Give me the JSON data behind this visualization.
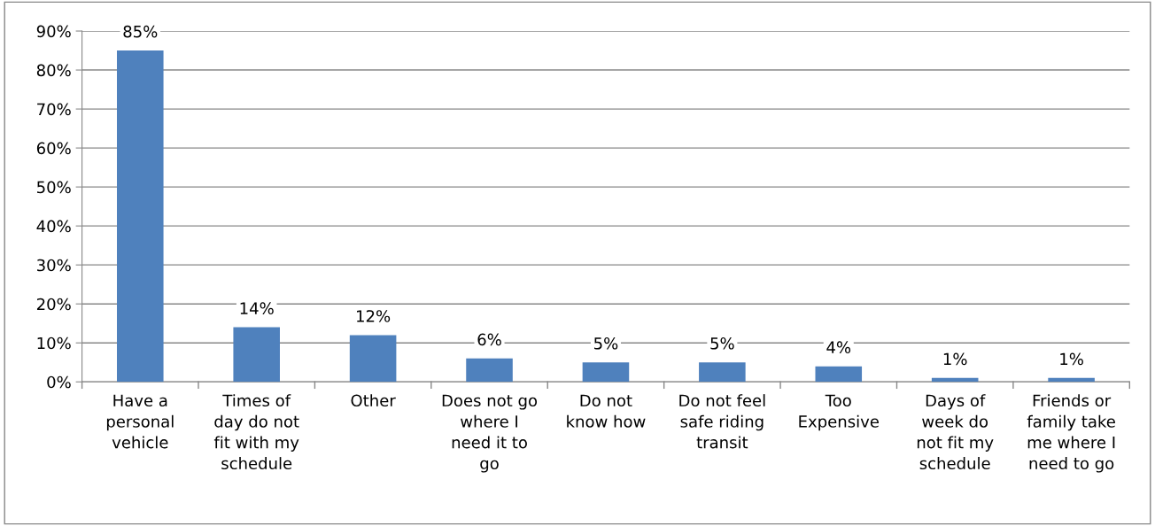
{
  "chart_data": {
    "type": "bar",
    "categories": [
      "Have a\npersonal\nvehicle",
      "Times of\nday do not\nfit with my\nschedule",
      "Other",
      "Does not go\nwhere I\nneed it to\ngo",
      "Do not\nknow how",
      "Do not feel\nsafe riding\ntransit",
      "Too\nExpensive",
      "Days of\nweek do\nnot fit my\nschedule",
      "Friends or\nfamily take\nme where I\nneed to go"
    ],
    "values": [
      85,
      14,
      12,
      6,
      5,
      5,
      4,
      1,
      1
    ],
    "value_labels": [
      "85%",
      "14%",
      "12%",
      "6%",
      "5%",
      "5%",
      "4%",
      "1%",
      "1%"
    ],
    "color": "#4f81bd",
    "ylim": [
      0,
      90
    ],
    "yticks": [
      {
        "value": 0,
        "label": "0%"
      },
      {
        "value": 10,
        "label": "10%"
      },
      {
        "value": 20,
        "label": "20%"
      },
      {
        "value": 30,
        "label": "30%"
      },
      {
        "value": 40,
        "label": "40%"
      },
      {
        "value": 50,
        "label": "50%"
      },
      {
        "value": 60,
        "label": "60%"
      },
      {
        "value": 70,
        "label": "70%"
      },
      {
        "value": 80,
        "label": "80%"
      },
      {
        "value": 90,
        "label": "90%"
      }
    ],
    "grid": "y"
  }
}
